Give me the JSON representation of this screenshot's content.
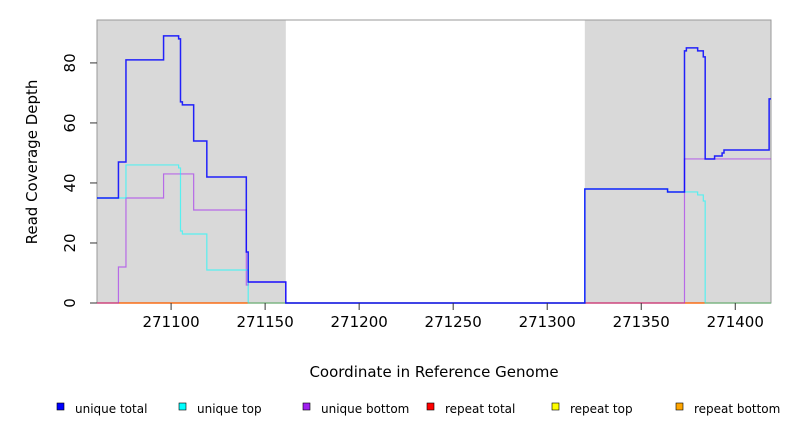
{
  "chart_data": {
    "type": "line",
    "title": "",
    "xlabel": "Coordinate in Reference Genome",
    "ylabel": "Read Coverage Depth",
    "xlim": [
      271060.6,
      271419
    ],
    "ylim": [
      0,
      94.3
    ],
    "xticks": [
      271100,
      271150,
      271200,
      271250,
      271300,
      271350,
      271400
    ],
    "yticks": [
      0,
      20,
      40,
      60,
      80
    ],
    "shaded_regions": [
      [
        271060.6,
        271161
      ],
      [
        271320,
        271419
      ]
    ],
    "legend_placement": "bottom",
    "series": [
      {
        "name": "unique total",
        "color": "#0000ff",
        "steps": [
          [
            271060.6,
            35
          ],
          [
            271072,
            47
          ],
          [
            271076,
            81
          ],
          [
            271096,
            89
          ],
          [
            271104,
            88
          ],
          [
            271105,
            67
          ],
          [
            271106,
            66
          ],
          [
            271112,
            54
          ],
          [
            271119,
            42
          ],
          [
            271140,
            17
          ],
          [
            271141,
            7
          ],
          [
            271161,
            0
          ],
          [
            271320,
            38
          ],
          [
            271364,
            37
          ],
          [
            271373,
            84
          ],
          [
            271374,
            85
          ],
          [
            271380,
            84
          ],
          [
            271383,
            82
          ],
          [
            271384,
            48
          ],
          [
            271389,
            49
          ],
          [
            271393,
            50
          ],
          [
            271394,
            51
          ],
          [
            271418,
            68
          ]
        ]
      },
      {
        "name": "unique top",
        "color": "#00ffff",
        "steps": [
          [
            271060.6,
            35
          ],
          [
            271076,
            46
          ],
          [
            271104,
            45
          ],
          [
            271105,
            24
          ],
          [
            271106,
            23
          ],
          [
            271119,
            11
          ],
          [
            271141,
            0
          ],
          [
            271320,
            38
          ],
          [
            271364,
            37
          ],
          [
            271380,
            36
          ],
          [
            271383,
            34
          ],
          [
            271384,
            0
          ]
        ]
      },
      {
        "name": "unique bottom",
        "color": "#a020f0",
        "steps": [
          [
            271060.6,
            0
          ],
          [
            271072,
            12
          ],
          [
            271076,
            35
          ],
          [
            271096,
            43
          ],
          [
            271112,
            31
          ],
          [
            271140,
            6
          ],
          [
            271141,
            7
          ],
          [
            271161,
            0
          ],
          [
            271373,
            48
          ]
        ]
      },
      {
        "name": "repeat total",
        "color": "#ff0000",
        "steps": [
          [
            271060.6,
            0
          ]
        ]
      },
      {
        "name": "repeat top",
        "color": "#ffff00",
        "steps": [
          [
            271060.6,
            0
          ]
        ]
      },
      {
        "name": "repeat bottom",
        "color": "#ffa500",
        "steps": [
          [
            271060.6,
            0
          ]
        ]
      }
    ]
  }
}
